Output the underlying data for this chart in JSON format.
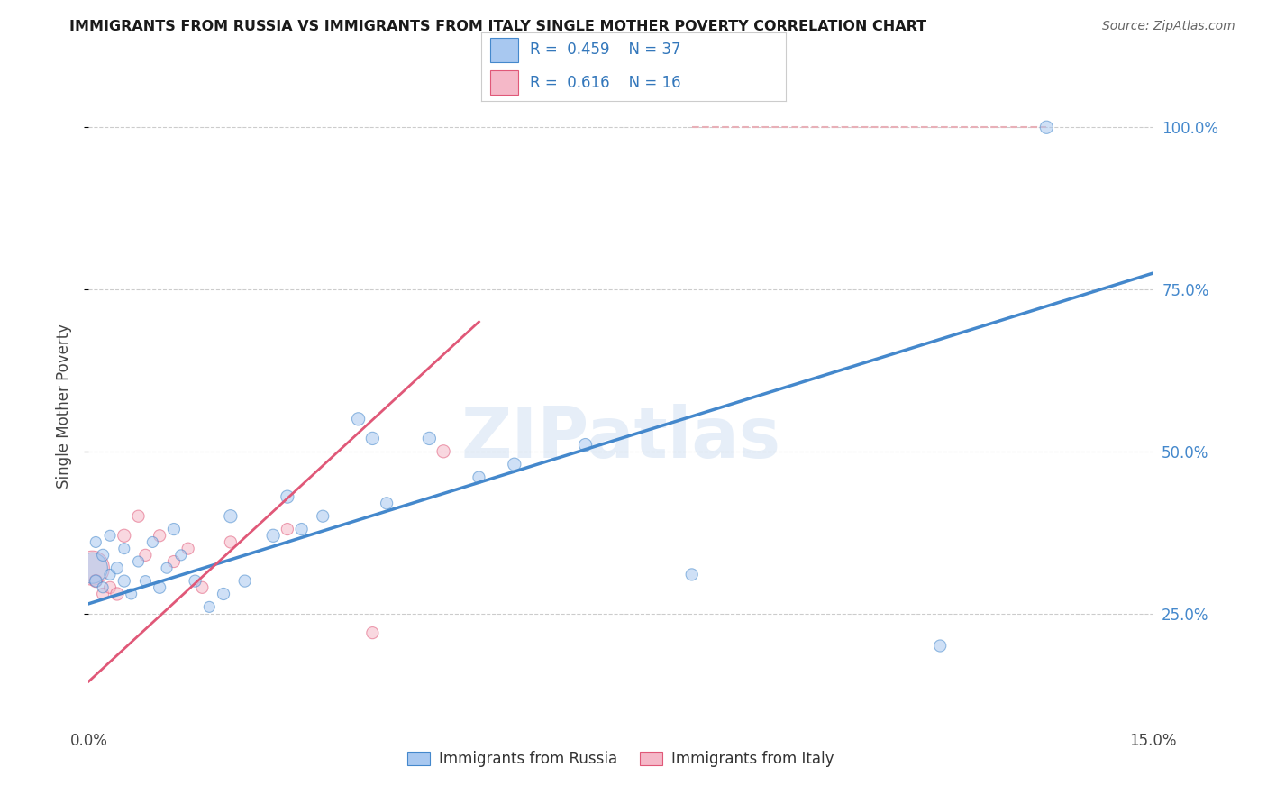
{
  "title": "IMMIGRANTS FROM RUSSIA VS IMMIGRANTS FROM ITALY SINGLE MOTHER POVERTY CORRELATION CHART",
  "source": "Source: ZipAtlas.com",
  "ylabel_label": "Single Mother Poverty",
  "x_min": 0.0,
  "x_max": 0.15,
  "y_min": 0.08,
  "y_max": 1.06,
  "x_ticks": [
    0.0,
    0.03,
    0.06,
    0.09,
    0.12,
    0.15
  ],
  "x_tick_labels": [
    "0.0%",
    "",
    "",
    "",
    "",
    "15.0%"
  ],
  "y_ticks": [
    0.25,
    0.5,
    0.75,
    1.0
  ],
  "y_tick_labels": [
    "25.0%",
    "50.0%",
    "75.0%",
    "100.0%"
  ],
  "legend_R1": "0.459",
  "legend_N1": "37",
  "legend_R2": "0.616",
  "legend_N2": "16",
  "legend_label1": "Immigrants from Russia",
  "legend_label2": "Immigrants from Italy",
  "color_russia": "#a8c8f0",
  "color_italy": "#f5b8c8",
  "color_russia_line": "#4488cc",
  "color_italy_line": "#e05878",
  "color_dashed_line": "#e8b0b8",
  "watermark": "ZIPatlas",
  "russia_x": [
    0.0005,
    0.001,
    0.001,
    0.002,
    0.002,
    0.003,
    0.003,
    0.004,
    0.005,
    0.005,
    0.006,
    0.007,
    0.008,
    0.009,
    0.01,
    0.011,
    0.012,
    0.013,
    0.015,
    0.017,
    0.019,
    0.02,
    0.022,
    0.026,
    0.028,
    0.03,
    0.033,
    0.038,
    0.04,
    0.042,
    0.048,
    0.055,
    0.06,
    0.07,
    0.085,
    0.12,
    0.135
  ],
  "russia_y": [
    0.32,
    0.3,
    0.36,
    0.29,
    0.34,
    0.31,
    0.37,
    0.32,
    0.3,
    0.35,
    0.28,
    0.33,
    0.3,
    0.36,
    0.29,
    0.32,
    0.38,
    0.34,
    0.3,
    0.26,
    0.28,
    0.4,
    0.3,
    0.37,
    0.43,
    0.38,
    0.4,
    0.55,
    0.52,
    0.42,
    0.52,
    0.46,
    0.48,
    0.51,
    0.31,
    0.2,
    1.0
  ],
  "russia_size": [
    200,
    30,
    25,
    25,
    30,
    25,
    25,
    30,
    30,
    25,
    25,
    25,
    25,
    25,
    30,
    25,
    30,
    25,
    30,
    25,
    30,
    35,
    30,
    35,
    35,
    30,
    30,
    35,
    35,
    30,
    35,
    30,
    35,
    35,
    30,
    30,
    35
  ],
  "italy_x": [
    0.0005,
    0.001,
    0.002,
    0.003,
    0.004,
    0.005,
    0.007,
    0.008,
    0.01,
    0.012,
    0.014,
    0.016,
    0.02,
    0.028,
    0.04,
    0.05
  ],
  "italy_y": [
    0.32,
    0.3,
    0.28,
    0.29,
    0.28,
    0.37,
    0.4,
    0.34,
    0.37,
    0.33,
    0.35,
    0.29,
    0.36,
    0.38,
    0.22,
    0.5
  ],
  "italy_size": [
    250,
    35,
    30,
    30,
    35,
    35,
    30,
    30,
    30,
    30,
    30,
    30,
    30,
    30,
    30,
    35
  ],
  "russia_line_x0": 0.0,
  "russia_line_y0": 0.265,
  "russia_line_x1": 0.15,
  "russia_line_y1": 0.775,
  "italy_line_x0": 0.0,
  "italy_line_y0": 0.145,
  "italy_line_x1": 0.055,
  "italy_line_y1": 0.7,
  "dashed_line_x0": 0.085,
  "dashed_line_y0": 1.0,
  "dashed_line_x1": 0.135,
  "dashed_line_y1": 1.0
}
